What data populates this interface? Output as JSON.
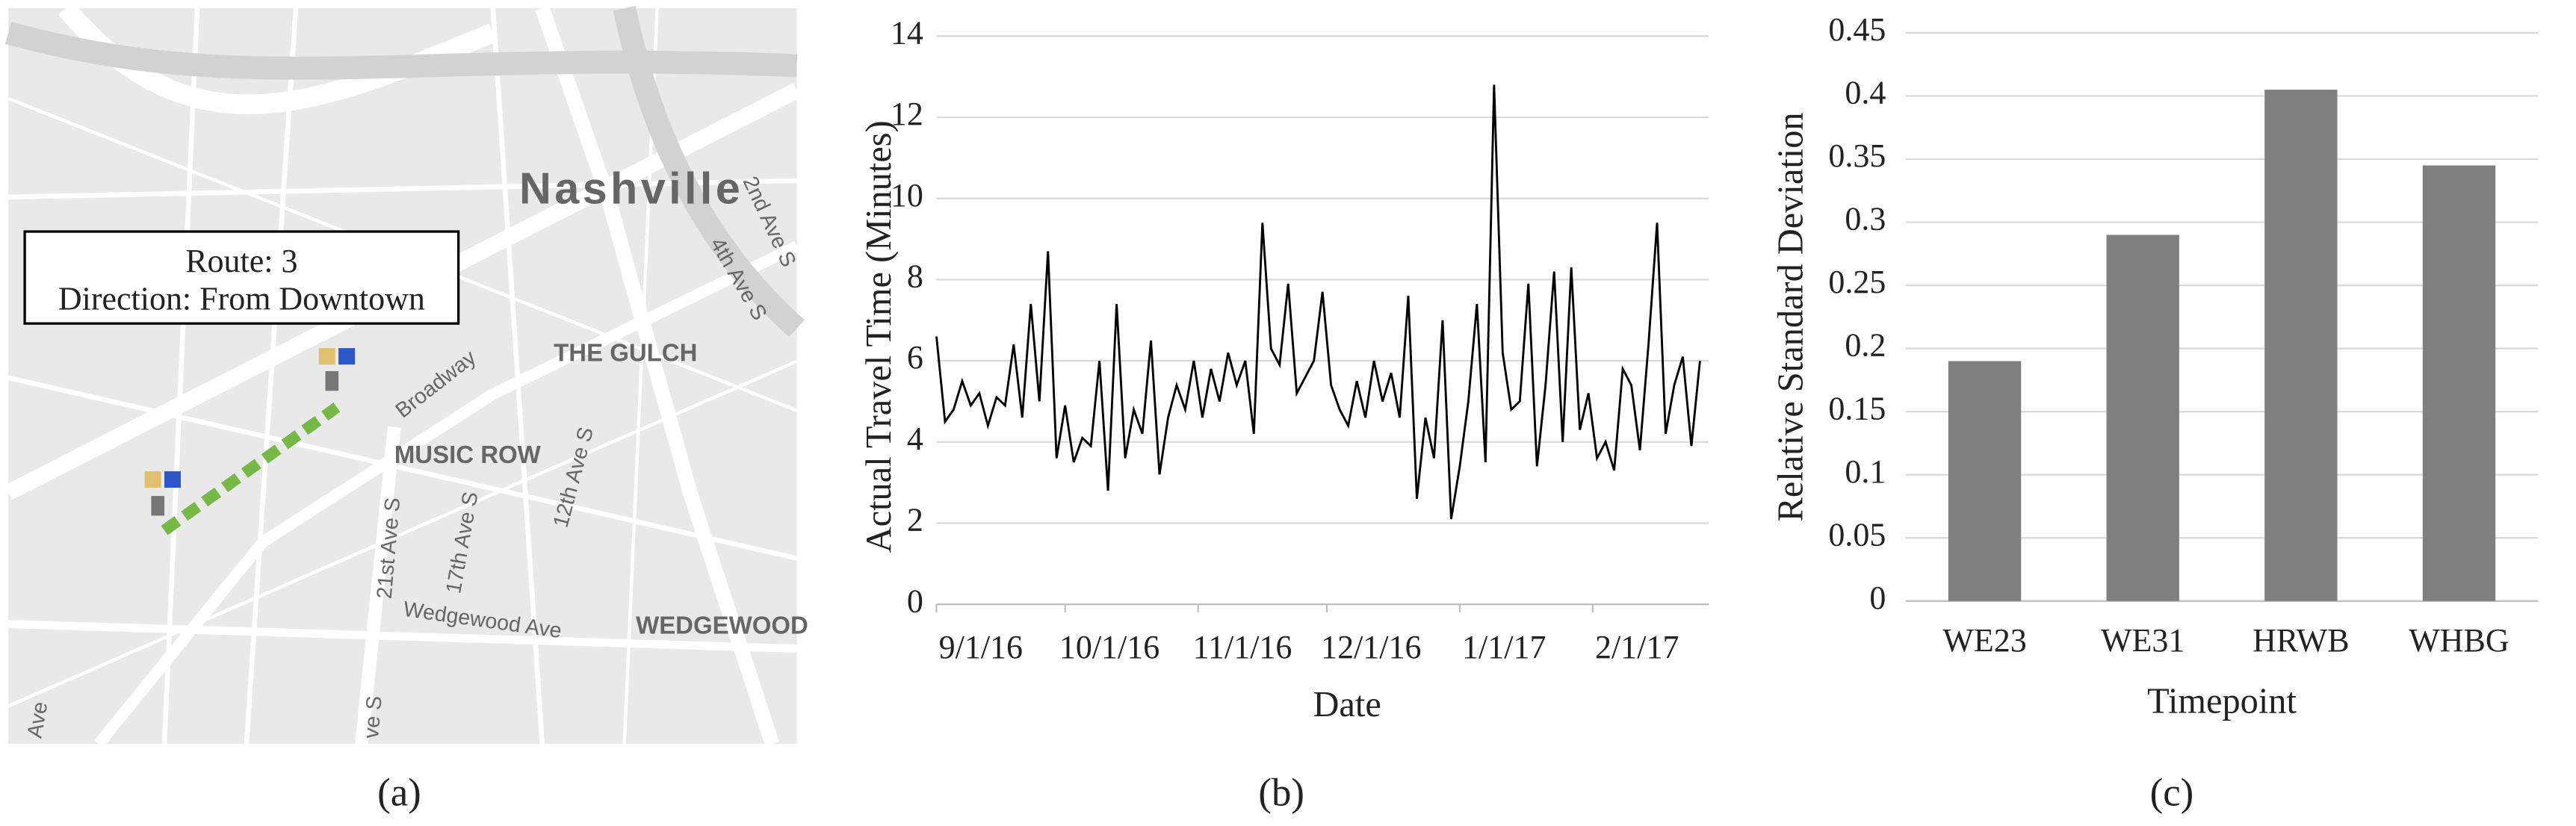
{
  "map": {
    "city": "Nashville",
    "labels": [
      "THE GULCH",
      "MUSIC ROW",
      "WEDGEWOOD",
      "Broadway",
      "21st Ave S",
      "17th Ave S",
      "12th Ave S",
      "Wedgewood Ave",
      "4th Ave S",
      "2nd Ave S",
      "Ave",
      "ve S"
    ],
    "info": [
      "Route: 3",
      "Direction: From Downtown"
    ]
  },
  "captions": [
    "(a)",
    "(b)",
    "(c)"
  ],
  "chart_data": [
    {
      "type": "line",
      "xlabel": "Date",
      "ylabel": "Actual Travel Time (Minutes)",
      "color": "#000000",
      "grid": true,
      "x": [
        "2016-09-01",
        "2016-09-03",
        "2016-09-05",
        "2016-09-07",
        "2016-09-09",
        "2016-09-11",
        "2016-09-13",
        "2016-09-15",
        "2016-09-17",
        "2016-09-19",
        "2016-09-21",
        "2016-09-23",
        "2016-09-25",
        "2016-09-27",
        "2016-09-29",
        "2016-10-01",
        "2016-10-03",
        "2016-10-05",
        "2016-10-07",
        "2016-10-09",
        "2016-10-11",
        "2016-10-13",
        "2016-10-15",
        "2016-10-17",
        "2016-10-19",
        "2016-10-21",
        "2016-10-23",
        "2016-10-25",
        "2016-10-27",
        "2016-10-29",
        "2016-10-31",
        "2016-11-02",
        "2016-11-04",
        "2016-11-06",
        "2016-11-08",
        "2016-11-10",
        "2016-11-12",
        "2016-11-14",
        "2016-11-16",
        "2016-11-18",
        "2016-11-20",
        "2016-11-22",
        "2016-11-24",
        "2016-11-26",
        "2016-11-28",
        "2016-11-30",
        "2016-12-02",
        "2016-12-04",
        "2016-12-06",
        "2016-12-08",
        "2016-12-10",
        "2016-12-12",
        "2016-12-14",
        "2016-12-16",
        "2016-12-18",
        "2016-12-20",
        "2016-12-22",
        "2016-12-24",
        "2016-12-26",
        "2016-12-28",
        "2016-12-30",
        "2017-01-01",
        "2017-01-03",
        "2017-01-05",
        "2017-01-07",
        "2017-01-09",
        "2017-01-11",
        "2017-01-13",
        "2017-01-15",
        "2017-01-17",
        "2017-01-19",
        "2017-01-21",
        "2017-01-23",
        "2017-01-25",
        "2017-01-27",
        "2017-01-29",
        "2017-01-31",
        "2017-02-02",
        "2017-02-04",
        "2017-02-06",
        "2017-02-08",
        "2017-02-10",
        "2017-02-12",
        "2017-02-14",
        "2017-02-16",
        "2017-02-18",
        "2017-02-20",
        "2017-02-22",
        "2017-02-24",
        "2017-02-26"
      ],
      "values": [
        6.6,
        4.5,
        4.8,
        5.5,
        4.9,
        5.2,
        4.4,
        5.1,
        4.9,
        6.4,
        4.6,
        7.4,
        5.0,
        8.7,
        3.6,
        4.9,
        3.5,
        4.1,
        3.9,
        6.0,
        2.8,
        7.4,
        3.6,
        4.8,
        4.2,
        6.5,
        3.2,
        4.6,
        5.4,
        4.8,
        6.0,
        4.6,
        5.8,
        5.0,
        6.2,
        5.4,
        6.0,
        4.2,
        9.4,
        6.3,
        5.9,
        7.9,
        5.2,
        5.6,
        6.0,
        7.7,
        5.4,
        4.8,
        4.4,
        5.5,
        4.6,
        6.0,
        5.0,
        5.7,
        4.6,
        7.6,
        2.6,
        4.6,
        3.6,
        7.0,
        2.1,
        3.4,
        5.0,
        7.4,
        3.5,
        12.8,
        6.2,
        4.8,
        5.0,
        7.9,
        3.4,
        5.4,
        8.2,
        4.0,
        8.3,
        4.3,
        5.2,
        3.6,
        4.0,
        3.3,
        5.8,
        5.4,
        3.8,
        6.4,
        9.4,
        4.2,
        5.4,
        6.1,
        3.9,
        6.0
      ],
      "xlim": [
        "2016-09-01",
        "2017-02-28"
      ],
      "xticks": [
        {
          "value": "2016-09-01",
          "label": "9/1/16"
        },
        {
          "value": "2016-10-01",
          "label": "10/1/16"
        },
        {
          "value": "2016-11-01",
          "label": "11/1/16"
        },
        {
          "value": "2016-12-01",
          "label": "12/1/16"
        },
        {
          "value": "2017-01-01",
          "label": "1/1/17"
        },
        {
          "value": "2017-02-01",
          "label": "2/1/17"
        }
      ],
      "ylim": [
        0,
        14
      ],
      "yticks": [
        0,
        2,
        4,
        6,
        8,
        10,
        12,
        14
      ]
    },
    {
      "type": "bar",
      "xlabel": "Timepoint",
      "ylabel": "Relative Standard Deviation",
      "color": "#7f7f7f",
      "grid": true,
      "categories": [
        "WE23",
        "WE31",
        "HRWB",
        "WHBG"
      ],
      "values": [
        0.19,
        0.29,
        0.405,
        0.345
      ],
      "ylim": [
        0,
        0.45
      ],
      "yticks": [
        0,
        0.05,
        0.1,
        0.15,
        0.2,
        0.25,
        0.3,
        0.35,
        0.4,
        0.45
      ]
    }
  ]
}
